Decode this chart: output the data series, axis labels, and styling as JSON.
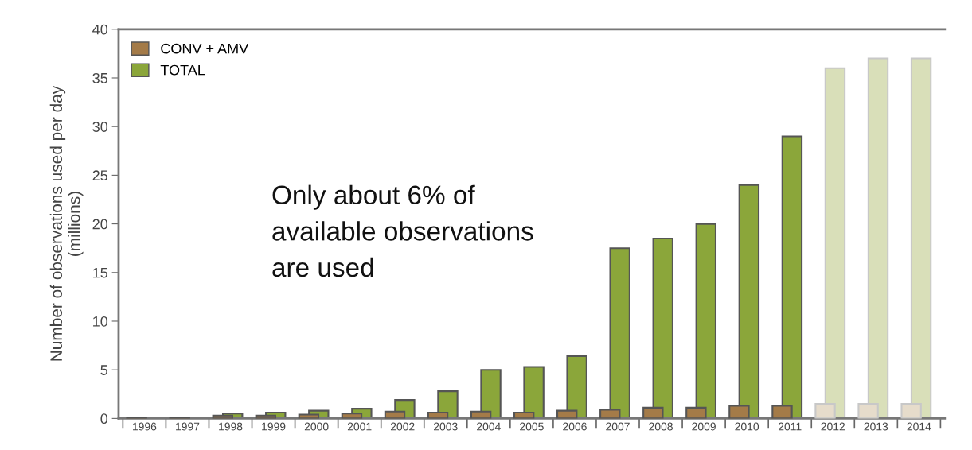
{
  "chart_data": {
    "type": "bar",
    "ylabel": "Number of observations used per day\n(millions)",
    "categories": [
      "1996",
      "1997",
      "1998",
      "1999",
      "2000",
      "2001",
      "2002",
      "2003",
      "2004",
      "2005",
      "2006",
      "2007",
      "2008",
      "2009",
      "2010",
      "2011",
      "2012",
      "2013",
      "2014"
    ],
    "series": [
      {
        "name": "CONV + AMV",
        "color": "#a47b48",
        "colors": [
          "#a47b48",
          "#a47b48",
          "#a47b48",
          "#a47b48",
          "#a47b48",
          "#a47b48",
          "#a47b48",
          "#a47b48",
          "#a47b48",
          "#a47b48",
          "#a47b48",
          "#a47b48",
          "#a47b48",
          "#a47b48",
          "#a47b48",
          "#a47b48",
          "#e6dccb",
          "#e6dccb",
          "#e6dccb"
        ],
        "values": [
          0.1,
          0.1,
          0.3,
          0.3,
          0.4,
          0.5,
          0.7,
          0.6,
          0.7,
          0.6,
          0.8,
          0.9,
          1.1,
          1.1,
          1.3,
          1.3,
          1.5,
          1.5,
          1.5
        ]
      },
      {
        "name": "TOTAL",
        "color": "#8ba63a",
        "colors": [
          "#8ba63a",
          "#8ba63a",
          "#8ba63a",
          "#8ba63a",
          "#8ba63a",
          "#8ba63a",
          "#8ba63a",
          "#8ba63a",
          "#8ba63a",
          "#8ba63a",
          "#8ba63a",
          "#8ba63a",
          "#8ba63a",
          "#8ba63a",
          "#8ba63a",
          "#8ba63a",
          "#d9dfb9",
          "#d9dfb9",
          "#d9dfb9"
        ],
        "values": [
          null,
          null,
          0.5,
          0.6,
          0.8,
          1.0,
          1.9,
          2.8,
          5.0,
          5.3,
          6.4,
          17.5,
          18.5,
          20.0,
          24.0,
          29.0,
          36.0,
          37.0,
          37.0
        ]
      }
    ],
    "ylim": [
      0,
      40
    ],
    "yticks": [
      0,
      5,
      10,
      15,
      20,
      25,
      30,
      35,
      40
    ],
    "grid": false,
    "legend": "top left",
    "annotations": [
      "Only about 6% of\navailable observations\nare used"
    ]
  }
}
